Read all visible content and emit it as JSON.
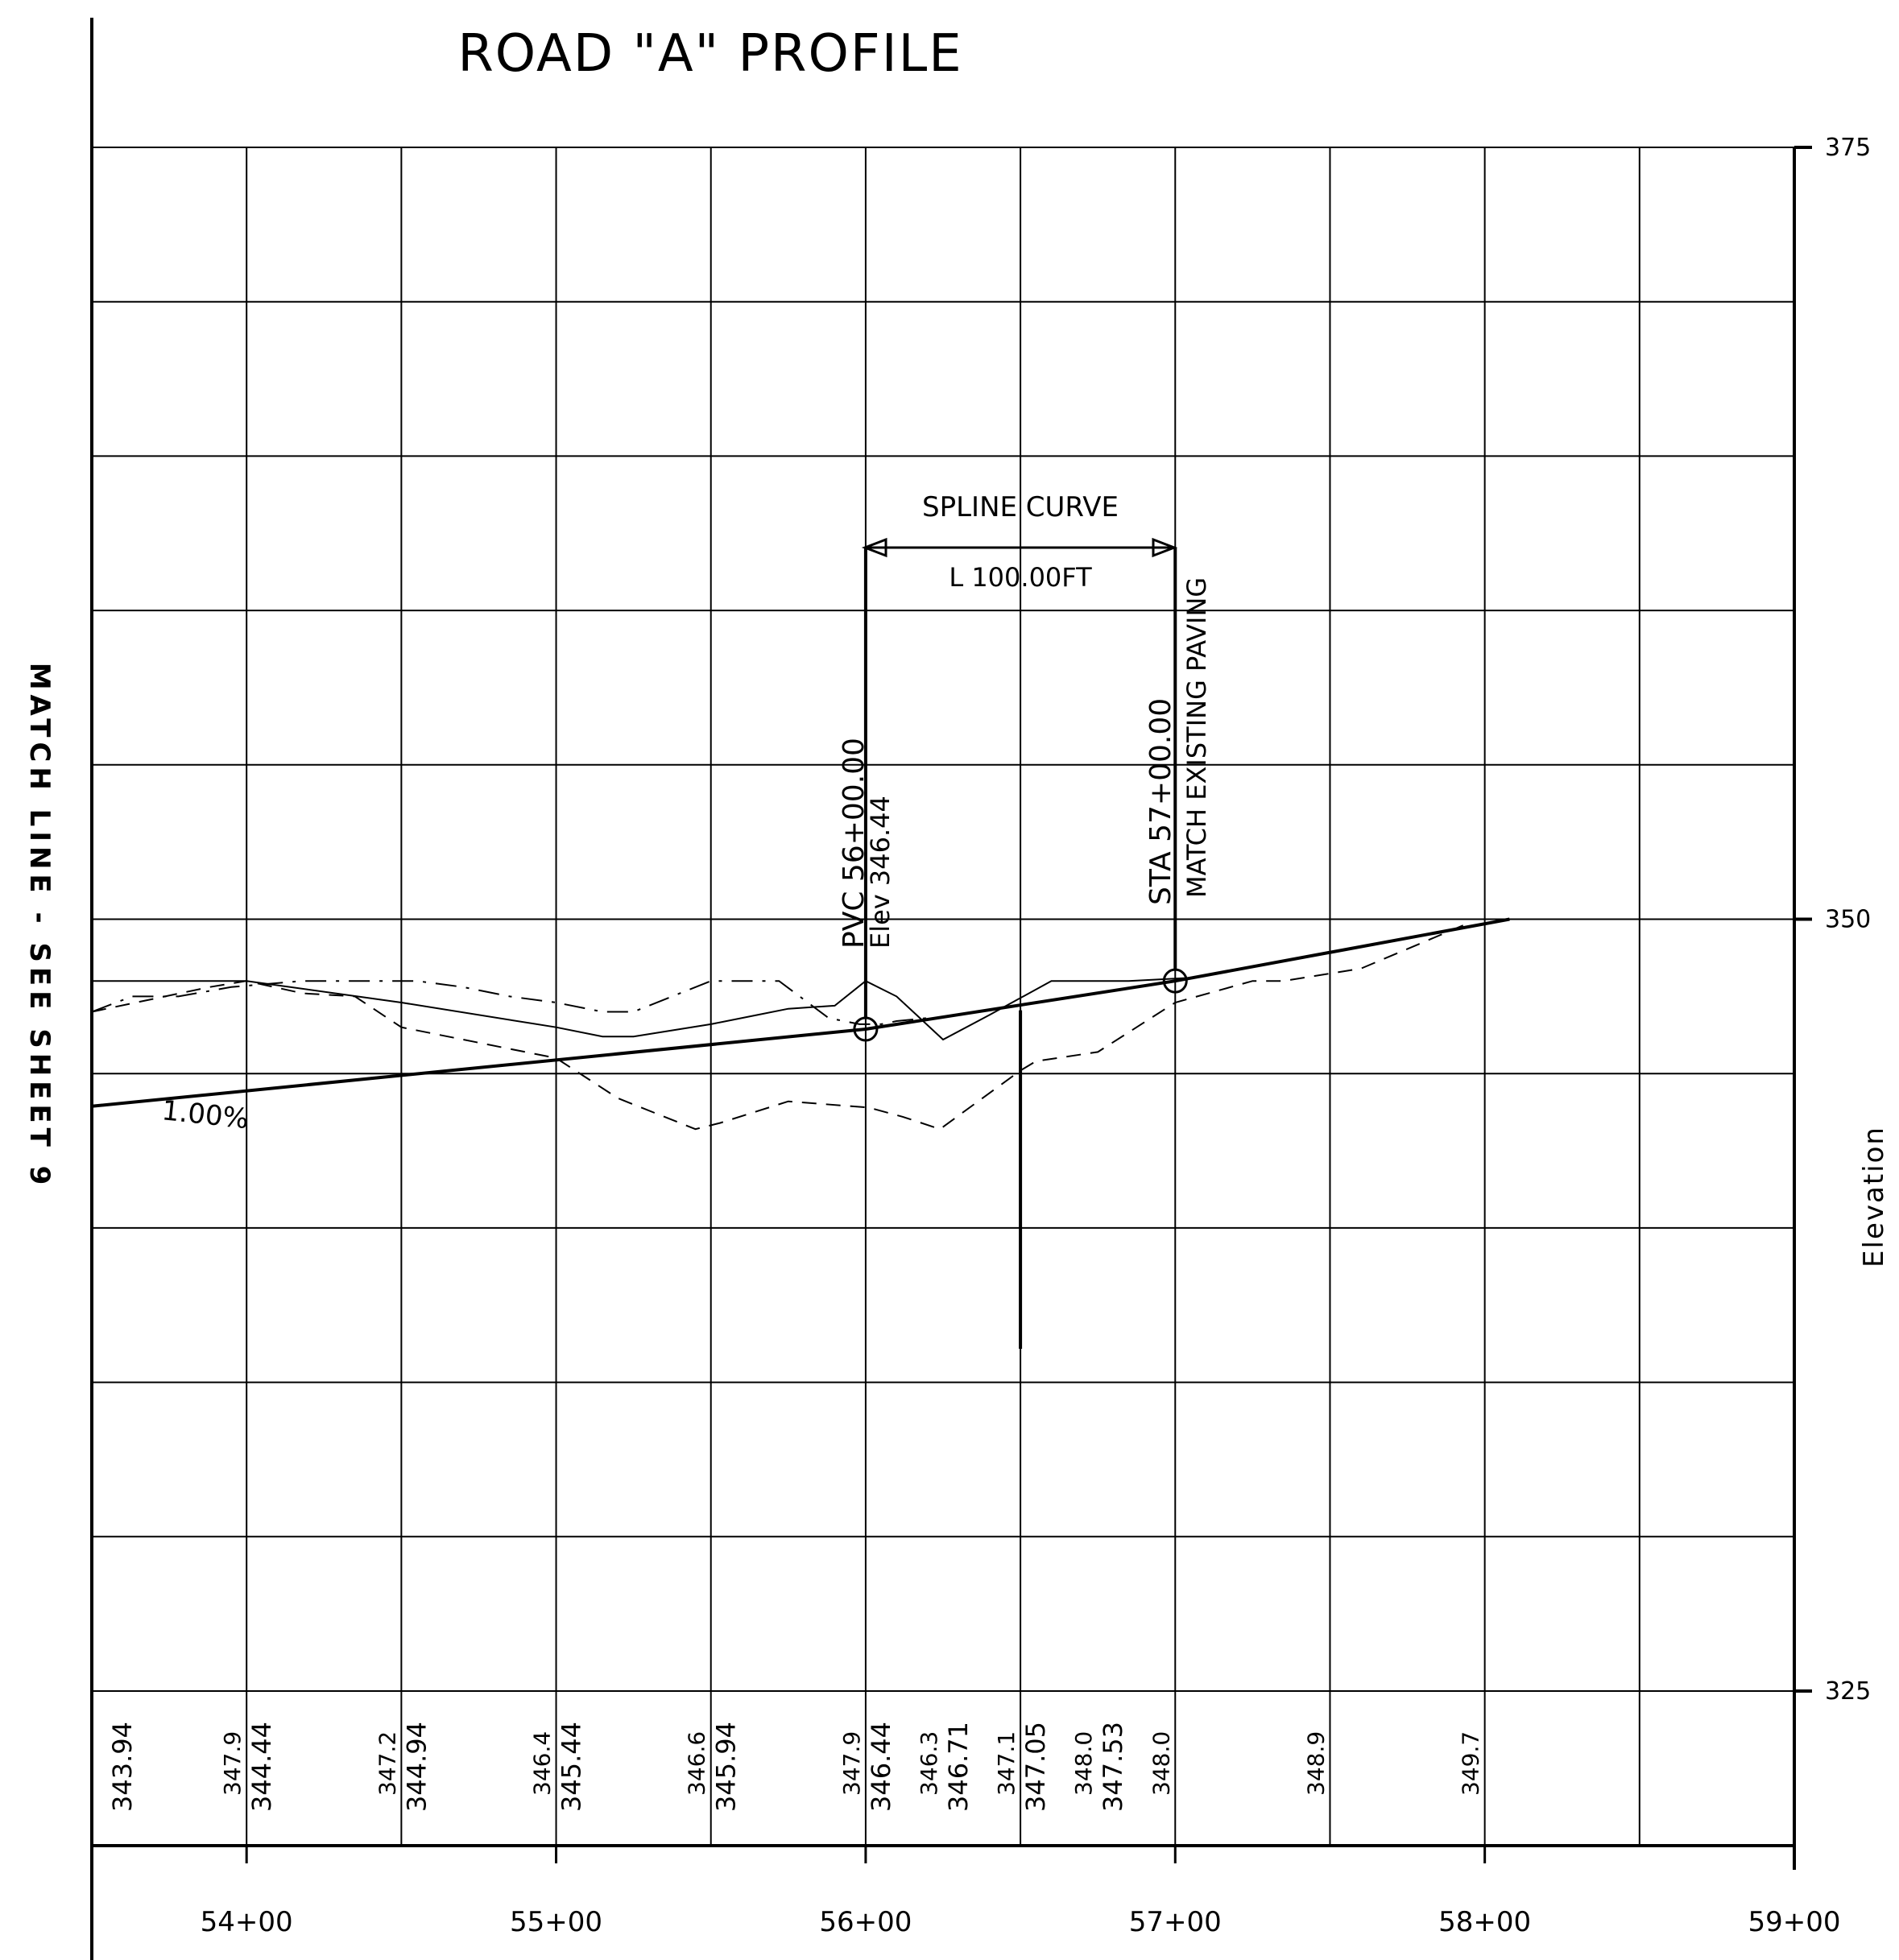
{
  "title": "ROAD \"A\" PROFILE",
  "match_line": "MATCH LINE - SEE SHEET 9",
  "y_axis": {
    "label": "Elevation",
    "ticks": [
      "375",
      "350",
      "325"
    ],
    "range": [
      325,
      375
    ],
    "grid_step": 5
  },
  "x_axis": {
    "ticks": [
      "54+00",
      "55+00",
      "56+00",
      "57+00",
      "58+00",
      "59+00"
    ],
    "range_sta": [
      5350,
      5900
    ],
    "grid_step_sta": 50
  },
  "grade_label": "1.00%",
  "annotations": {
    "spline_title": "SPLINE CURVE",
    "spline_length": "L 100.00FT",
    "pvc_line1": "PVC 56+00.00",
    "pvc_line2": "Elev 346.44",
    "sta_line1": "STA 57+00.00",
    "sta_line2": "MATCH EXISTING PAVING"
  },
  "elevation_table": [
    {
      "sta": 5355,
      "existing": "",
      "proposed": "343.94"
    },
    {
      "sta": 5400,
      "existing": "347.9",
      "proposed": "344.44"
    },
    {
      "sta": 5450,
      "existing": "347.2",
      "proposed": "344.94"
    },
    {
      "sta": 5500,
      "existing": "346.4",
      "proposed": "345.44"
    },
    {
      "sta": 5550,
      "existing": "346.6",
      "proposed": "345.94"
    },
    {
      "sta": 5600,
      "existing": "347.9",
      "proposed": "346.44"
    },
    {
      "sta": 5625,
      "existing": "346.3",
      "proposed": "346.71"
    },
    {
      "sta": 5650,
      "existing": "347.1",
      "proposed": "347.05"
    },
    {
      "sta": 5675,
      "existing": "348.0",
      "proposed": "347.53"
    },
    {
      "sta": 5700,
      "existing": "348.0",
      "proposed": ""
    },
    {
      "sta": 5750,
      "existing": "348.9",
      "proposed": ""
    },
    {
      "sta": 5800,
      "existing": "349.7",
      "proposed": ""
    }
  ],
  "chart_data": {
    "type": "line",
    "title": "ROAD \"A\" PROFILE",
    "xlabel": "",
    "ylabel": "Elevation",
    "xlim": [
      5350,
      5900
    ],
    "ylim": [
      325,
      375
    ],
    "grid": true,
    "series": [
      {
        "name": "",
        "style": "proposed",
        "x": [
          5350,
          5600,
          5700,
          5808
        ],
        "y": [
          343.94,
          346.44,
          348.0,
          350.0
        ]
      },
      {
        "name": "",
        "style": "existing-left",
        "x": [
          5350,
          5400,
          5450,
          5500,
          5515,
          5525,
          5550,
          5565,
          5575,
          5590,
          5600,
          5610,
          5625,
          5640,
          5660,
          5665,
          5685,
          5705
        ],
        "y": [
          348.0,
          348.0,
          347.3,
          346.5,
          346.2,
          346.2,
          346.6,
          346.9,
          347.1,
          347.2,
          348.0,
          347.5,
          346.1,
          346.9,
          348.0,
          348.0,
          348.0,
          348.1
        ]
      },
      {
        "name": "",
        "style": "existing-center",
        "x": [
          5350,
          5363,
          5378,
          5395,
          5418,
          5435,
          5455,
          5470,
          5485,
          5500,
          5515,
          5525,
          5550,
          5572,
          5588,
          5598,
          5605,
          5610,
          5620
        ],
        "y": [
          347.0,
          347.5,
          347.5,
          347.8,
          348.0,
          348.0,
          348.0,
          347.8,
          347.5,
          347.3,
          347.0,
          347.0,
          348.0,
          348.0,
          346.8,
          346.6,
          346.6,
          346.7,
          346.8
        ]
      },
      {
        "name": "",
        "style": "existing-right",
        "x": [
          5350,
          5388,
          5400,
          5418,
          5435,
          5450,
          5500,
          5520,
          5545,
          5553,
          5575,
          5601,
          5612,
          5624,
          5650,
          5655,
          5675,
          5700,
          5725,
          5735,
          5760,
          5793
        ],
        "y": [
          347.0,
          347.8,
          348.0,
          347.6,
          347.5,
          346.5,
          345.5,
          344.2,
          343.2,
          343.4,
          344.1,
          343.9,
          343.6,
          343.2,
          345.1,
          345.4,
          345.7,
          347.3,
          348.0,
          348.0,
          348.4,
          349.8
        ]
      }
    ],
    "points": [
      {
        "label": "PVC",
        "x": 5600,
        "y": 346.44
      },
      {
        "label": "STA 57+00.00",
        "x": 5700,
        "y": 348.0
      }
    ]
  }
}
